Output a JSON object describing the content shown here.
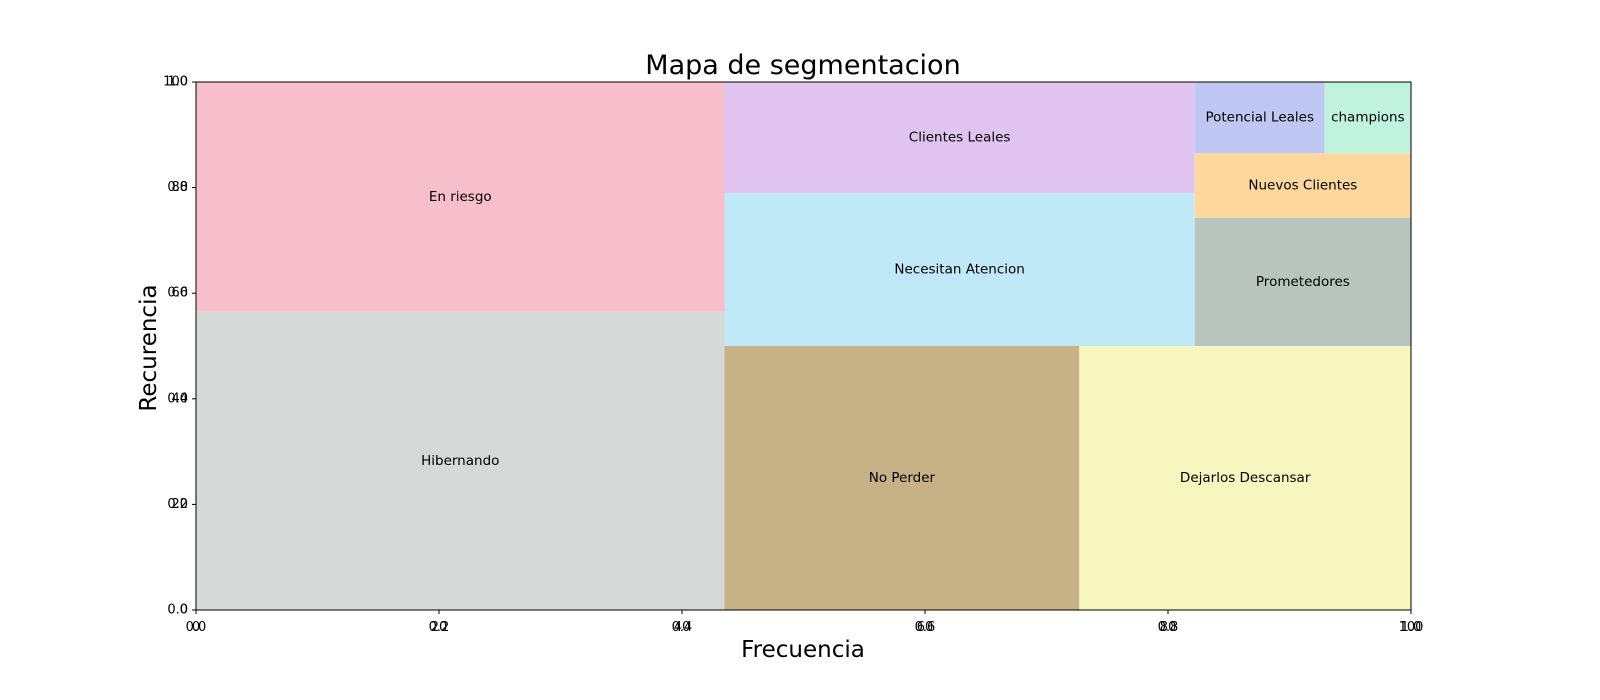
{
  "chart_data": {
    "type": "treemap",
    "title": "Mapa de segmentacion",
    "xlabel": "Frecuencia",
    "ylabel": "Recurencia",
    "xlim": [
      0,
      100
    ],
    "ylim": [
      0,
      100
    ],
    "grid": false,
    "x_ticks": {
      "primary": [
        "0.0",
        "0.2",
        "0.4",
        "0.6",
        "0.8",
        "1.0"
      ],
      "secondary": [
        "0",
        "20",
        "40",
        "60",
        "80",
        "100"
      ]
    },
    "y_ticks": {
      "primary": [
        "0.0",
        "0.2",
        "0.4",
        "0.6",
        "0.8",
        "1.0"
      ],
      "secondary": [
        "0",
        "20",
        "40",
        "60",
        "80",
        "100"
      ]
    },
    "segments": [
      {
        "label": "Hibernando",
        "x0": 0,
        "x1": 43.5,
        "y0": 0,
        "y1": 56.5,
        "color": "#d5d9d8"
      },
      {
        "label": "En riesgo",
        "x0": 0,
        "x1": 43.5,
        "y0": 56.5,
        "y1": 100,
        "color": "#f7bfcb"
      },
      {
        "label": "No Perder",
        "x0": 43.5,
        "x1": 72.7,
        "y0": 0,
        "y1": 50,
        "color": "#c7b187"
      },
      {
        "label": "Dejarlos Descansar",
        "x0": 72.7,
        "x1": 100,
        "y0": 0,
        "y1": 50,
        "color": "#f7f6bf"
      },
      {
        "label": "Necesitan Atencion",
        "x0": 43.5,
        "x1": 82.2,
        "y0": 50,
        "y1": 79,
        "color": "#bfe9f7"
      },
      {
        "label": "Clientes Leales",
        "x0": 43.5,
        "x1": 82.2,
        "y0": 79,
        "y1": 100,
        "color": "#e1c3f1"
      },
      {
        "label": "Prometedores",
        "x0": 82.2,
        "x1": 100,
        "y0": 50,
        "y1": 74.3,
        "color": "#b8c5bf"
      },
      {
        "label": "Nuevos Clientes",
        "x0": 82.2,
        "x1": 100,
        "y0": 74.3,
        "y1": 86.5,
        "color": "#fdd79d"
      },
      {
        "label": "Potencial Leales",
        "x0": 82.2,
        "x1": 92.9,
        "y0": 86.5,
        "y1": 100,
        "color": "#bfc8f2"
      },
      {
        "label": "champions",
        "x0": 92.9,
        "x1": 100,
        "y0": 86.5,
        "y1": 100,
        "color": "#c1f2dd"
      }
    ]
  }
}
